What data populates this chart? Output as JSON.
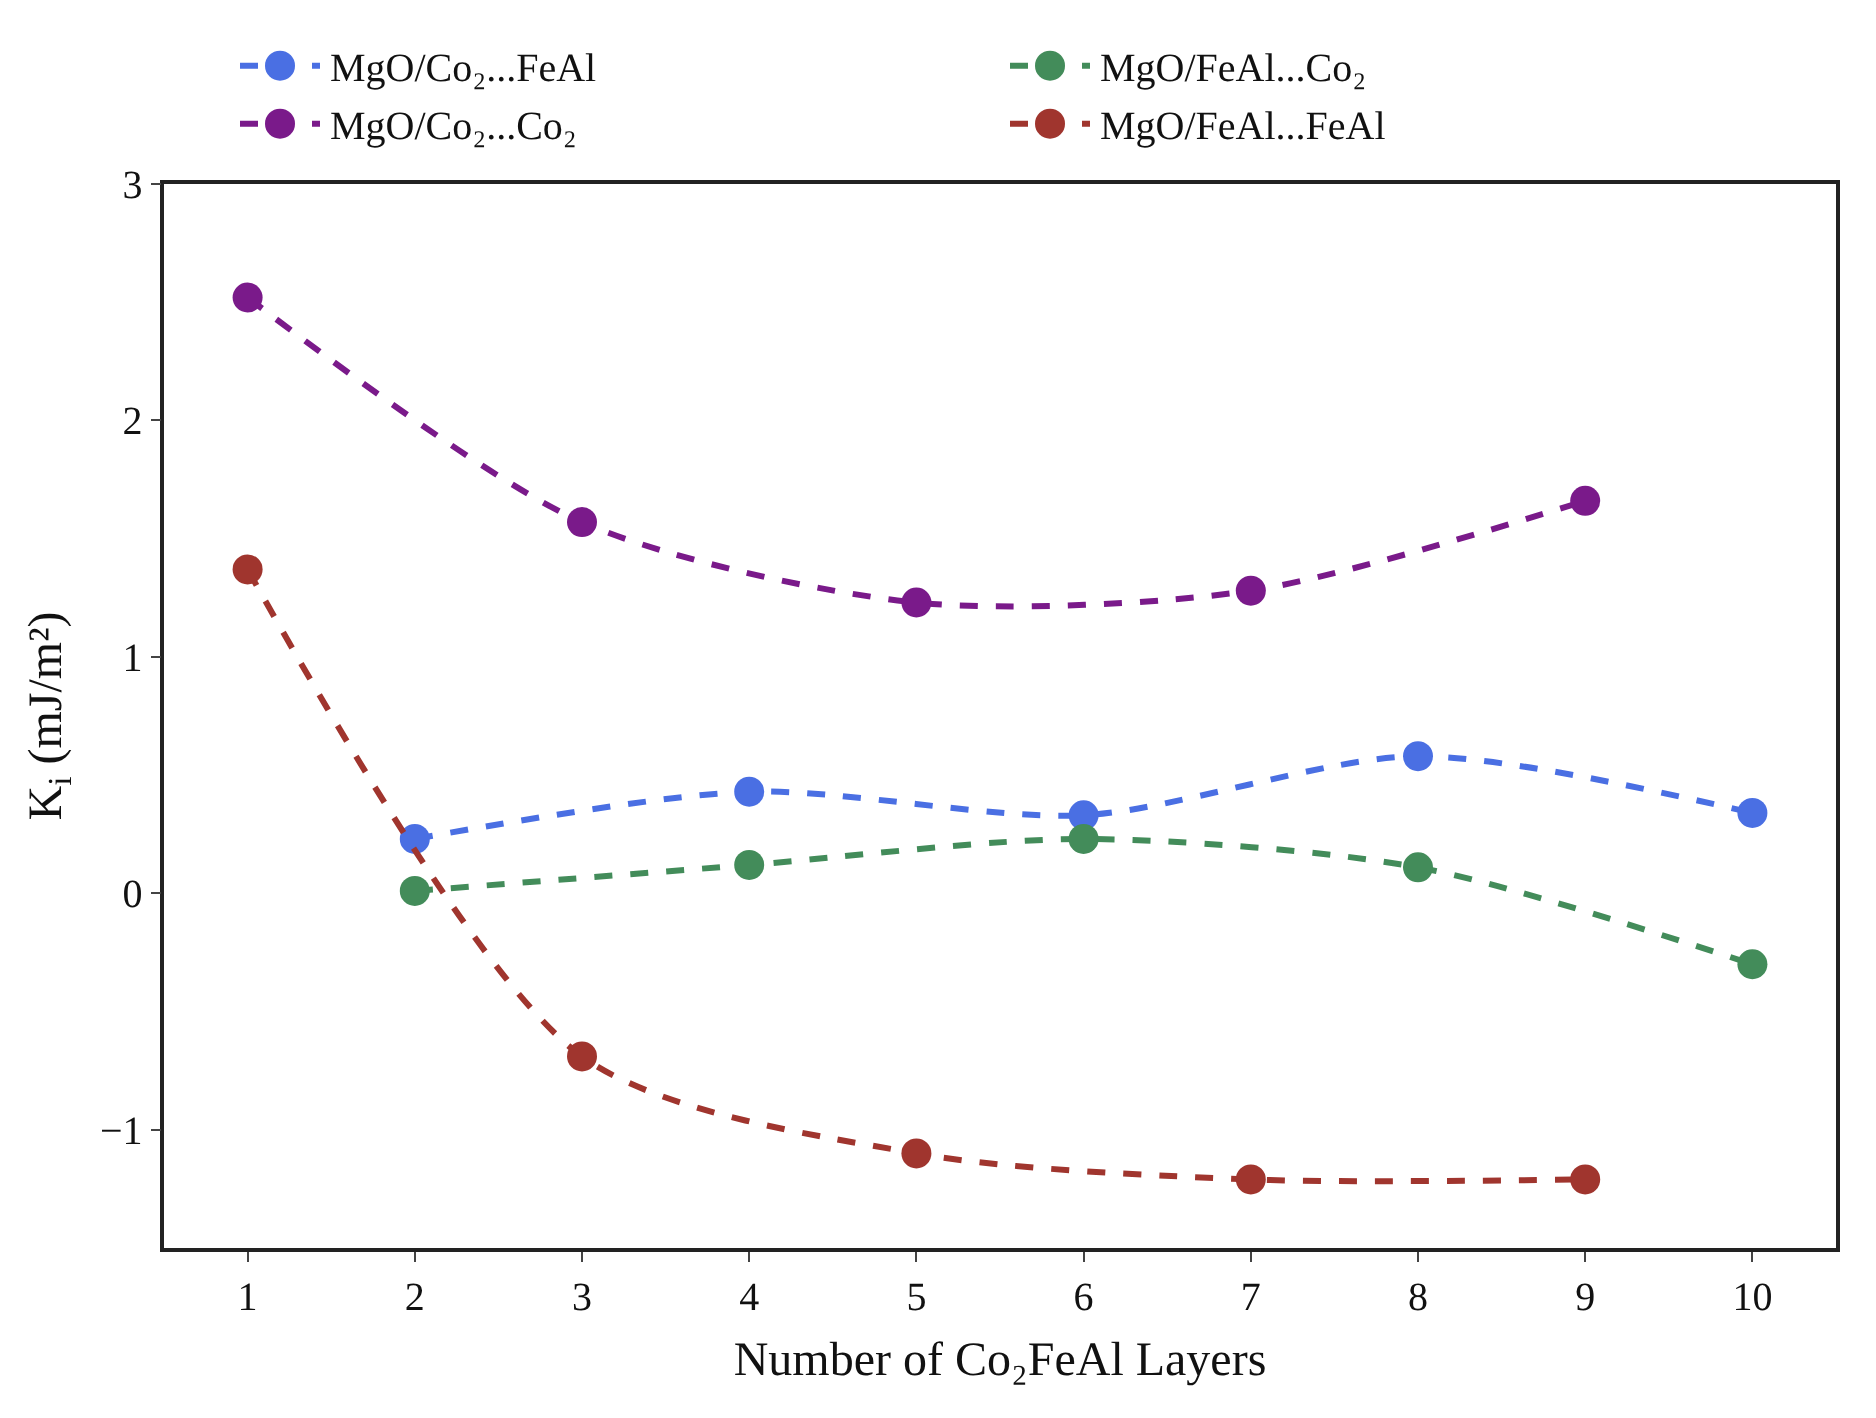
{
  "chart_data": {
    "type": "line",
    "xlabel": "Number of Co₂FeAl Layers",
    "ylabel": "K$_{i}$ (mJ/m²)",
    "xlim": [
      0.5,
      10.5
    ],
    "xticks": [
      1,
      2,
      3,
      4,
      5,
      6,
      7,
      8,
      9,
      10
    ],
    "ylim": [
      -1.5,
      3
    ],
    "yticks": [
      -1,
      0,
      1,
      2,
      3
    ],
    "grid": false,
    "legend": "top",
    "marker": "circle",
    "line_style": "dashed",
    "series": [
      {
        "name": "MgO/Co₂...FeAl",
        "color": "#4a6fe3",
        "x": [
          2,
          4,
          6,
          8,
          10
        ],
        "values": [
          0.23,
          0.43,
          0.33,
          0.58,
          0.34
        ]
      },
      {
        "name": "MgO/FeAl...Co₂",
        "color": "#438c5a",
        "x": [
          2,
          4,
          6,
          8,
          10
        ],
        "values": [
          0.01,
          0.12,
          0.23,
          0.11,
          -0.3
        ]
      },
      {
        "name": "MgO/Co₂...Co₂",
        "color": "#7a1a8a",
        "x": [
          1,
          3,
          5,
          7,
          9
        ],
        "values": [
          2.52,
          1.57,
          1.23,
          1.28,
          1.66
        ]
      },
      {
        "name": "MgO/FeAl...FeAl",
        "color": "#a0352e",
        "x": [
          1,
          3,
          5,
          7,
          9
        ],
        "values": [
          1.37,
          -0.69,
          -1.1,
          -1.21,
          -1.21
        ]
      }
    ]
  }
}
